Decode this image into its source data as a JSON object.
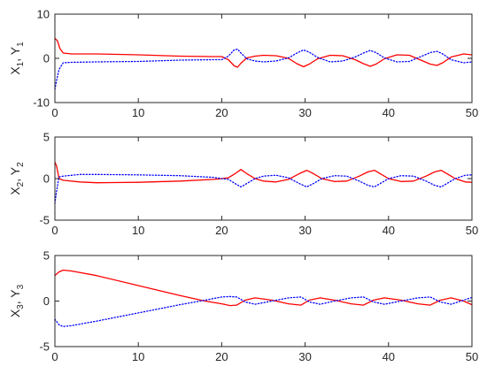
{
  "chart_data": [
    {
      "type": "line",
      "ylabel_parts": [
        "X",
        "1",
        ", Y",
        "1"
      ],
      "xlim": [
        0,
        50
      ],
      "ylim": [
        -10,
        10
      ],
      "xticks": [
        0,
        10,
        20,
        30,
        40,
        50
      ],
      "yticks": [
        -10,
        0,
        10
      ],
      "grid": false,
      "series": [
        {
          "color": "#ff0000",
          "style": "solid",
          "x": [
            0,
            0.3,
            0.6,
            1,
            2,
            5,
            10,
            15,
            19,
            20,
            20.8,
            21.5,
            21.9,
            22.3,
            23,
            24,
            25,
            26.5,
            28,
            29,
            29.8,
            30.5,
            31.5,
            33,
            34.5,
            36,
            37,
            37.8,
            38.5,
            39.5,
            41,
            42.5,
            44,
            45,
            45.8,
            46.5,
            47.5,
            49,
            50
          ],
          "y": [
            4.5,
            4,
            2.2,
            1.2,
            1,
            1,
            0.8,
            0.5,
            0.4,
            0.4,
            -0.3,
            -1.7,
            -2,
            -1.1,
            0.1,
            0.5,
            0.7,
            0.6,
            0,
            -1.2,
            -1.9,
            -1.3,
            -0.1,
            0.7,
            0.6,
            -0.3,
            -1.2,
            -1.8,
            -1.3,
            -0.1,
            0.8,
            0.7,
            -0.5,
            -1.3,
            -1.6,
            -1,
            0.3,
            1,
            0.8
          ]
        },
        {
          "color": "#0000ff",
          "style": "dotted",
          "x": [
            0,
            0.2,
            0.5,
            1,
            2,
            5,
            10,
            15,
            19,
            20,
            20.8,
            21.5,
            21.9,
            22.3,
            23,
            24,
            25,
            26.5,
            28,
            29,
            29.8,
            30.5,
            31.5,
            33,
            34.5,
            36,
            37,
            37.8,
            38.5,
            39.5,
            41,
            42.5,
            44,
            45,
            45.8,
            46.5,
            47.5,
            49,
            50
          ],
          "y": [
            -7,
            -5,
            -2.5,
            -1,
            -0.9,
            -0.8,
            -0.7,
            -0.4,
            -0.3,
            -0.3,
            0.5,
            1.9,
            2.1,
            1.2,
            -0.1,
            -0.6,
            -0.8,
            -0.6,
            0.1,
            1.2,
            1.9,
            1.4,
            0.2,
            -0.8,
            -0.6,
            0.3,
            1.2,
            1.8,
            1.3,
            0.1,
            -0.8,
            -0.7,
            0.5,
            1.3,
            1.6,
            1,
            -0.3,
            -1,
            -0.8
          ]
        }
      ]
    },
    {
      "type": "line",
      "ylabel_parts": [
        "X",
        "2",
        ", Y",
        "2"
      ],
      "xlim": [
        0,
        50
      ],
      "ylim": [
        -5,
        5
      ],
      "xticks": [
        0,
        10,
        20,
        30,
        40,
        50
      ],
      "yticks": [
        -5,
        0,
        5
      ],
      "grid": false,
      "series": [
        {
          "color": "#ff0000",
          "style": "solid",
          "x": [
            0,
            0.2,
            0.5,
            1,
            3,
            5,
            10,
            15,
            19,
            20,
            20.8,
            21.6,
            22.3,
            23,
            24,
            25,
            26.5,
            28,
            29.3,
            30.2,
            31,
            32,
            33.5,
            35,
            36.5,
            37.5,
            38.3,
            39,
            40,
            41.5,
            43,
            44.5,
            45.5,
            46.3,
            47,
            48,
            49.2,
            50
          ],
          "y": [
            2,
            1.5,
            0,
            -0.2,
            -0.4,
            -0.5,
            -0.45,
            -0.3,
            -0.1,
            0,
            0.1,
            0.6,
            1.1,
            0.6,
            0,
            -0.3,
            -0.4,
            -0.1,
            0.6,
            1,
            0.6,
            0,
            -0.35,
            -0.3,
            0.3,
            0.8,
            1,
            0.6,
            0,
            -0.35,
            -0.3,
            0.3,
            0.8,
            1,
            0.6,
            0,
            -0.4,
            -0.45
          ]
        },
        {
          "color": "#0000ff",
          "style": "dotted",
          "x": [
            0,
            0.2,
            0.5,
            1,
            3,
            5,
            10,
            15,
            19,
            20,
            20.8,
            21.6,
            22.3,
            23,
            24,
            25,
            26.5,
            28,
            29.3,
            30.2,
            31,
            32,
            33.5,
            35,
            36.5,
            37.5,
            38.3,
            39,
            40,
            41.5,
            43,
            44.5,
            45.5,
            46.3,
            47,
            48,
            49.2,
            50
          ],
          "y": [
            -3,
            -1.5,
            0.2,
            0.3,
            0.5,
            0.5,
            0.45,
            0.35,
            0.15,
            0,
            -0.1,
            -0.6,
            -1,
            -0.6,
            0,
            0.3,
            0.4,
            0.1,
            -0.6,
            -1,
            -0.6,
            0,
            0.35,
            0.3,
            -0.3,
            -0.8,
            -1,
            -0.6,
            0,
            0.35,
            0.3,
            -0.3,
            -0.8,
            -1,
            -0.6,
            0,
            0.4,
            0.45
          ]
        }
      ]
    },
    {
      "type": "line",
      "ylabel_parts": [
        "X",
        "3",
        ", Y",
        "3"
      ],
      "xlim": [
        0,
        50
      ],
      "ylim": [
        -5,
        5
      ],
      "xticks": [
        0,
        10,
        20,
        30,
        40,
        50
      ],
      "yticks": [
        -5,
        0,
        5
      ],
      "grid": false,
      "series": [
        {
          "color": "#ff0000",
          "style": "solid",
          "x": [
            0,
            0.5,
            1,
            2,
            5,
            10,
            15,
            18,
            20,
            21,
            21.8,
            22.8,
            24,
            26,
            28,
            29.5,
            30.5,
            31.8,
            33.5,
            35.5,
            37,
            38.2,
            39.5,
            41.5,
            43.5,
            45,
            46.2,
            47.5,
            49,
            50
          ],
          "y": [
            2.8,
            3.2,
            3.4,
            3.3,
            2.8,
            1.7,
            0.6,
            0,
            -0.3,
            -0.5,
            -0.45,
            0.1,
            0.35,
            0.1,
            -0.3,
            -0.45,
            0.1,
            0.35,
            0.1,
            -0.3,
            -0.45,
            0.1,
            0.35,
            0.1,
            -0.3,
            -0.45,
            0.1,
            0.35,
            0.0,
            -0.4
          ]
        },
        {
          "color": "#0000ff",
          "style": "dotted",
          "x": [
            0,
            0.5,
            1,
            2,
            5,
            10,
            15,
            18,
            20,
            21,
            21.8,
            22.8,
            24,
            26,
            28,
            29.5,
            30.5,
            31.8,
            33.5,
            35.5,
            37,
            38.2,
            39.5,
            41.5,
            43.5,
            45,
            46.2,
            47.5,
            49,
            50
          ],
          "y": [
            -2,
            -2.6,
            -2.8,
            -2.7,
            -2.2,
            -1.3,
            -0.4,
            0.1,
            0.45,
            0.5,
            0.45,
            -0.1,
            -0.35,
            0,
            0.35,
            0.45,
            -0.1,
            -0.35,
            0,
            0.35,
            0.45,
            -0.1,
            -0.35,
            0,
            0.35,
            0.45,
            -0.1,
            -0.35,
            0.1,
            0.4
          ]
        }
      ]
    }
  ]
}
